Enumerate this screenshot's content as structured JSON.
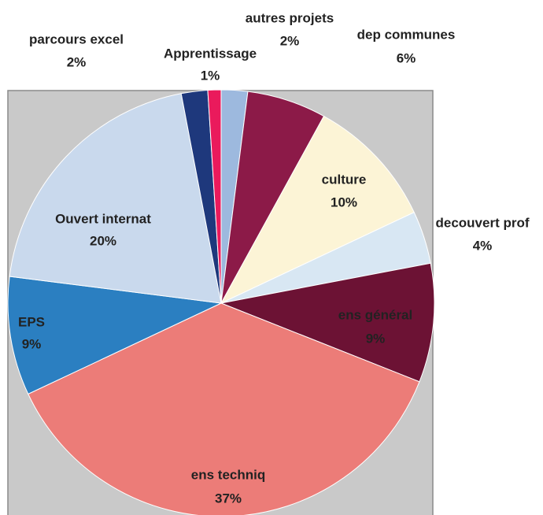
{
  "chart_data": {
    "type": "pie",
    "labels": [
      "autres projets",
      "dep communes",
      "culture",
      "decouvert prof",
      "ens général",
      "ens techniq",
      "EPS",
      "Ouvert internat",
      "parcours excel",
      "Apprentissage"
    ],
    "values": [
      2,
      6,
      10,
      4,
      9,
      37,
      9,
      20,
      2,
      1
    ],
    "value_labels": [
      "2%",
      "6%",
      "10%",
      "4%",
      "9%",
      "37%",
      "9%",
      "20%",
      "2%",
      "1%"
    ],
    "colors": [
      "#9db9de",
      "#8c1a48",
      "#fcf4d6",
      "#d8e7f3",
      "#6c1234",
      "#ec7c78",
      "#2b7fc1",
      "#c9d9ed",
      "#1e387c",
      "#ea1a5c"
    ]
  }
}
